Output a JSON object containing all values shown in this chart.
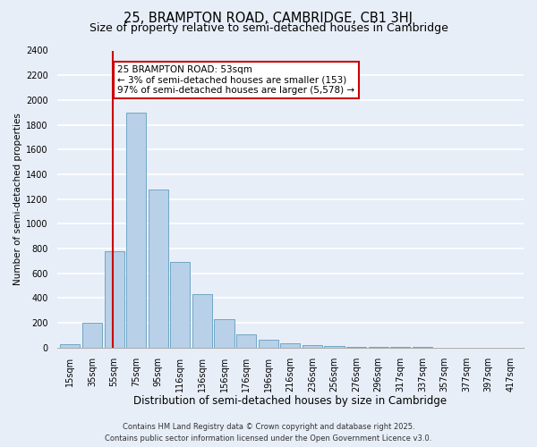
{
  "title": "25, BRAMPTON ROAD, CAMBRIDGE, CB1 3HJ",
  "subtitle": "Size of property relative to semi-detached houses in Cambridge",
  "xlabel": "Distribution of semi-detached houses by size in Cambridge",
  "ylabel": "Number of semi-detached properties",
  "bar_labels": [
    "15sqm",
    "35sqm",
    "55sqm",
    "75sqm",
    "95sqm",
    "116sqm",
    "136sqm",
    "156sqm",
    "176sqm",
    "196sqm",
    "216sqm",
    "236sqm",
    "256sqm",
    "276sqm",
    "296sqm",
    "317sqm",
    "337sqm",
    "357sqm",
    "377sqm",
    "397sqm",
    "417sqm"
  ],
  "bar_values": [
    25,
    200,
    775,
    1900,
    1280,
    695,
    435,
    230,
    110,
    65,
    35,
    20,
    10,
    5,
    5,
    3,
    2,
    1,
    1,
    0,
    0
  ],
  "bar_color": "#b8d0e8",
  "bar_edge_color": "#5f9ec0",
  "background_color": "#e8eef8",
  "grid_color": "#ffffff",
  "annotation_title": "25 BRAMPTON ROAD: 53sqm",
  "annotation_line1": "← 3% of semi-detached houses are smaller (153)",
  "annotation_line2": "97% of semi-detached houses are larger (5,578) →",
  "annotation_box_facecolor": "#ffffff",
  "annotation_box_edge": "#cc0000",
  "vline_color": "#cc0000",
  "ylim": [
    0,
    2400
  ],
  "yticks": [
    0,
    200,
    400,
    600,
    800,
    1000,
    1200,
    1400,
    1600,
    1800,
    2000,
    2200,
    2400
  ],
  "footer1": "Contains HM Land Registry data © Crown copyright and database right 2025.",
  "footer2": "Contains public sector information licensed under the Open Government Licence v3.0.",
  "title_fontsize": 10.5,
  "subtitle_fontsize": 9,
  "xlabel_fontsize": 8.5,
  "ylabel_fontsize": 7.5,
  "tick_fontsize": 7,
  "annotation_fontsize": 7.5,
  "footer_fontsize": 6
}
